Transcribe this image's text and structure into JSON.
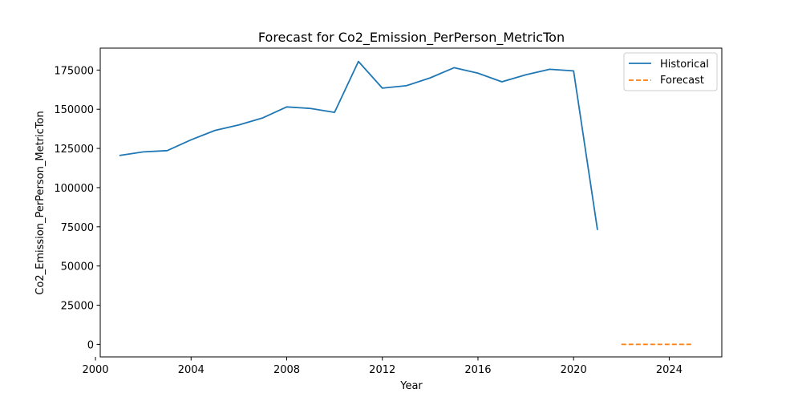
{
  "chart_data": {
    "type": "line",
    "title": "Forecast for Co2_Emission_PerPerson_MetricTon",
    "xlabel": "Year",
    "ylabel": "Co2_Emission_PerPerson_MetricTon",
    "xlim": [
      2000.2,
      2026.2
    ],
    "ylim": [
      -8000,
      189000
    ],
    "x_ticks": [
      2000,
      2004,
      2008,
      2012,
      2016,
      2020,
      2024
    ],
    "y_ticks": [
      0,
      25000,
      50000,
      75000,
      100000,
      125000,
      150000,
      175000
    ],
    "grid": false,
    "legend_position": "top-right",
    "series": [
      {
        "name": "Historical",
        "color": "#1f77b4",
        "style": "solid",
        "x": [
          2001,
          2002,
          2003,
          2004,
          2005,
          2006,
          2007,
          2008,
          2009,
          2010,
          2011,
          2012,
          2013,
          2014,
          2015,
          2016,
          2017,
          2018,
          2019,
          2020,
          2021
        ],
        "y": [
          120500,
          122800,
          123600,
          130500,
          136500,
          140000,
          144500,
          151500,
          150500,
          148000,
          180500,
          163500,
          165000,
          170000,
          176500,
          173000,
          167500,
          172000,
          175500,
          174500,
          73000
        ]
      },
      {
        "name": "Forecast",
        "color": "#ff7f0e",
        "style": "dashed",
        "x": [
          2022,
          2023,
          2024,
          2025
        ],
        "y": [
          0,
          0,
          0,
          0
        ]
      }
    ]
  }
}
